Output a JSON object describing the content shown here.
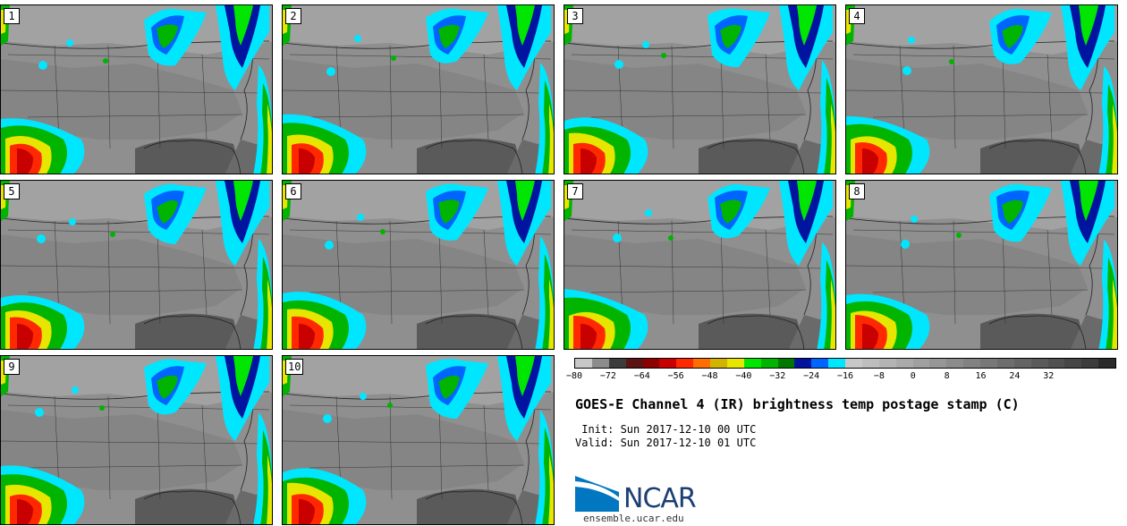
{
  "panels": [
    {
      "label": "1"
    },
    {
      "label": "2"
    },
    {
      "label": "3"
    },
    {
      "label": "4"
    },
    {
      "label": "5"
    },
    {
      "label": "6"
    },
    {
      "label": "7"
    },
    {
      "label": "8"
    },
    {
      "label": "9"
    },
    {
      "label": "10"
    }
  ],
  "colorbar": {
    "tick_labels": [
      "−80",
      "−72",
      "−64",
      "−56",
      "−48",
      "−40",
      "−32",
      "−24",
      "−16",
      "−8",
      "0",
      "8",
      "16",
      "24",
      "32"
    ],
    "colors": [
      "#c8c8c8",
      "#8c8c8c",
      "#3c3c3c",
      "#5a1414",
      "#8c0000",
      "#c80000",
      "#ff2800",
      "#ff6e00",
      "#d2b400",
      "#e6e600",
      "#00e600",
      "#00b400",
      "#007800",
      "#0014a0",
      "#0064ff",
      "#00e6ff",
      "#c8c8c8",
      "#bebebe",
      "#b4b4b4",
      "#aaaaaa",
      "#a0a0a0",
      "#969696",
      "#8c8c8c",
      "#828282",
      "#787878",
      "#6e6e6e",
      "#646464",
      "#5a5a5a",
      "#505050",
      "#464646",
      "#3c3c3c",
      "#2a2a2a"
    ]
  },
  "title": "GOES-E Channel 4 (IR) brightness temp postage stamp (C)",
  "init_line": " Init: Sun 2017-12-10 00 UTC",
  "valid_line": "Valid: Sun 2017-12-10 01 UTC",
  "logo_text": "NCAR",
  "website": "ensemble.ucar.edu"
}
